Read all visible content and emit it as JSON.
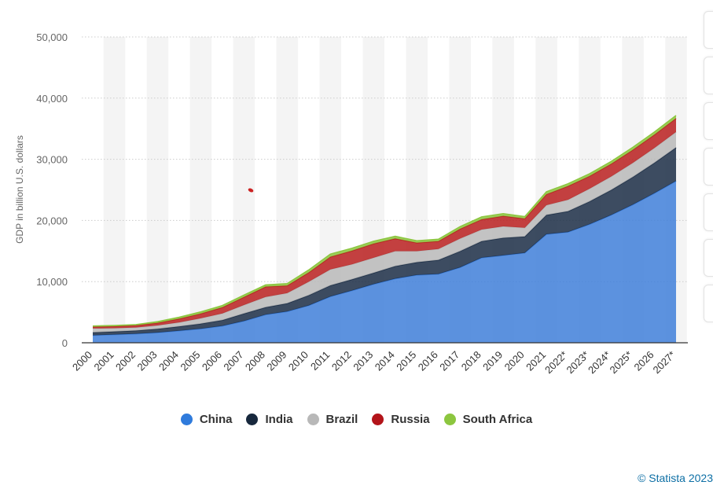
{
  "chart_data": {
    "type": "area",
    "stacked": true,
    "ylabel": "GDP in billion U.S. dollars",
    "xlabel": "",
    "ylim": [
      0,
      50000
    ],
    "yticks": [
      0,
      10000,
      20000,
      30000,
      40000,
      50000
    ],
    "ytick_labels": [
      "0",
      "10,000",
      "20,000",
      "30,000",
      "40,000",
      "50,000"
    ],
    "grid": true,
    "legend_position": "bottom",
    "categories": [
      "2000",
      "2001",
      "2002",
      "2003",
      "2004",
      "2005",
      "2006",
      "2007",
      "2008",
      "2009",
      "2010",
      "2011",
      "2012",
      "2013",
      "2014",
      "2015",
      "2016",
      "2017",
      "2018",
      "2019",
      "2020",
      "2021",
      "2022*",
      "2023*",
      "2024*",
      "2025*",
      "2026",
      "2027*"
    ],
    "series": [
      {
        "name": "China",
        "color": "#3f7fd9",
        "values": [
          1211,
          1339,
          1471,
          1660,
          1955,
          2286,
          2752,
          3550,
          4594,
          5102,
          6087,
          7552,
          8532,
          9570,
          10476,
          11062,
          11233,
          12310,
          13895,
          14280,
          14688,
          17734,
          18100,
          19374,
          20881,
          22577,
          24446,
          26440
        ]
      },
      {
        "name": "India",
        "color": "#1b2d45",
        "values": [
          468,
          485,
          515,
          608,
          709,
          820,
          940,
          1217,
          1198,
          1342,
          1676,
          1823,
          1828,
          1857,
          2039,
          2104,
          2294,
          2651,
          2703,
          2871,
          2672,
          3150,
          3390,
          3736,
          4106,
          4519,
          4980,
          5491
        ]
      },
      {
        "name": "Brazil",
        "color": "#b8b8b8",
        "values": [
          655,
          559,
          509,
          558,
          669,
          892,
          1107,
          1397,
          1696,
          1667,
          2209,
          2616,
          2465,
          2473,
          2456,
          1802,
          1796,
          2064,
          1917,
          1873,
          1448,
          1609,
          1894,
          2080,
          2201,
          2307,
          2413,
          2527
        ]
      },
      {
        "name": "Russia",
        "color": "#b91e1e",
        "values": [
          260,
          307,
          345,
          430,
          591,
          764,
          990,
          1300,
          1661,
          1223,
          1525,
          2046,
          2208,
          2292,
          2059,
          1363,
          1277,
          1574,
          1657,
          1690,
          1483,
          1779,
          2215,
          2062,
          2057,
          2125,
          2177,
          2237
        ]
      },
      {
        "name": "South Africa",
        "color": "#8cc63f",
        "values": [
          152,
          135,
          129,
          197,
          256,
          288,
          304,
          334,
          316,
          330,
          417,
          458,
          434,
          400,
          381,
          347,
          323,
          381,
          405,
          389,
          338,
          419,
          406,
          399,
          411,
          432,
          450,
          470
        ]
      }
    ]
  },
  "legend": {
    "items": [
      {
        "label": "China",
        "color": "#2f7bdc"
      },
      {
        "label": "India",
        "color": "#17283d"
      },
      {
        "label": "Brazil",
        "color": "#b8b8b8"
      },
      {
        "label": "Russia",
        "color": "#b3141a"
      },
      {
        "label": "South Africa",
        "color": "#8cc63f"
      }
    ]
  },
  "credit": "© Statista 2023"
}
